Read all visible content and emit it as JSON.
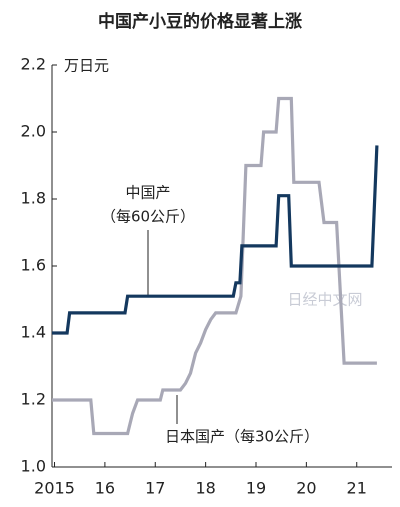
{
  "chart_data": {
    "type": "line",
    "title": "中国产小豆的价格显著上涨",
    "y_unit_label": "万日元",
    "watermark": "日经中文网",
    "ylim": [
      1.0,
      2.2
    ],
    "yticks": [
      {
        "value": 1.0,
        "label": "1.0"
      },
      1.2,
      1.4,
      1.6,
      1.8,
      {
        "value": 2.0,
        "label": "2.0"
      },
      2.2
    ],
    "xlim": [
      2014.95,
      2021.7
    ],
    "xticks": [
      {
        "value": 2015,
        "label": "2015"
      },
      {
        "value": 2016,
        "label": "16"
      },
      {
        "value": 2017,
        "label": "17"
      },
      {
        "value": 2018,
        "label": "18"
      },
      {
        "value": 2019,
        "label": "19"
      },
      {
        "value": 2020,
        "label": "20"
      },
      {
        "value": 2021,
        "label": "21"
      }
    ],
    "series": [
      {
        "name": "中国产",
        "note": "（每60公斤）",
        "color": "#14385e",
        "x": [
          2014.95,
          2015.25,
          2015.3,
          2016.4,
          2016.45,
          2018.55,
          2018.6,
          2018.68,
          2018.72,
          2019.4,
          2019.45,
          2019.65,
          2019.7,
          2021.3,
          2021.4
        ],
        "values": [
          1.4,
          1.4,
          1.46,
          1.46,
          1.51,
          1.51,
          1.55,
          1.55,
          1.66,
          1.66,
          1.81,
          1.81,
          1.6,
          1.6,
          1.96
        ]
      },
      {
        "name": "日本国产（每30公斤）",
        "color": "#a8a8b6",
        "x": [
          2014.95,
          2015.72,
          2015.78,
          2016.45,
          2016.55,
          2016.65,
          2017.1,
          2017.15,
          2017.5,
          2017.6,
          2017.7,
          2017.8,
          2017.9,
          2018.0,
          2018.1,
          2018.2,
          2018.6,
          2018.7,
          2018.8,
          2019.1,
          2019.15,
          2019.4,
          2019.45,
          2019.7,
          2019.75,
          2020.25,
          2020.35,
          2020.6,
          2020.75,
          2021.4
        ],
        "values": [
          1.2,
          1.2,
          1.1,
          1.1,
          1.16,
          1.2,
          1.2,
          1.23,
          1.23,
          1.25,
          1.28,
          1.34,
          1.37,
          1.41,
          1.44,
          1.46,
          1.46,
          1.51,
          1.9,
          1.9,
          2.0,
          2.0,
          2.1,
          2.1,
          1.85,
          1.85,
          1.73,
          1.73,
          1.31,
          1.31
        ]
      }
    ]
  }
}
